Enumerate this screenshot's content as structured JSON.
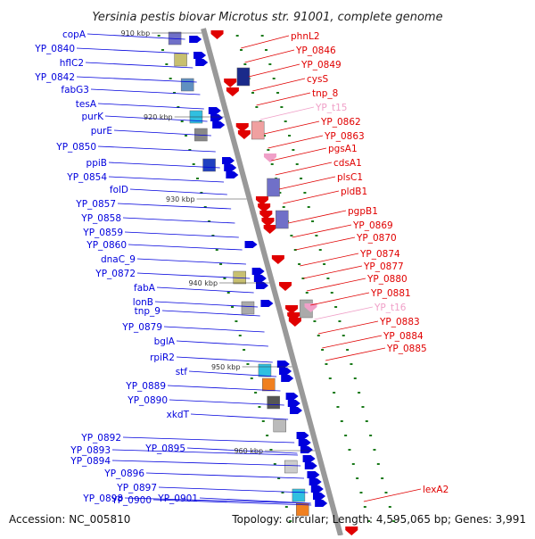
{
  "title": "Yersinia pestis biovar Microtus str. 91001, complete genome",
  "accession": "Accession: NC_005810",
  "summary": "Topology: circular; Length: 4,595,065 bp; Genes: 3,991",
  "colors": {
    "forward": "#0000dd",
    "reverse": "#e00000",
    "pseudo": "#f0a0c8",
    "backbone": "#999999",
    "tick": "#1a7a1a"
  },
  "ticks": [
    {
      "label": "910 kbp"
    },
    {
      "label": "920 kbp"
    },
    {
      "label": "930 kbp"
    },
    {
      "label": "940 kbp"
    },
    {
      "label": "950 kbp"
    },
    {
      "label": "960 kbp"
    }
  ],
  "left_genes": [
    "copA",
    "YP_0840",
    "hflC2",
    "YP_0842",
    "fabG3",
    "tesA",
    "purK",
    "purE",
    "YP_0850",
    "ppiB",
    "YP_0854",
    "folD",
    "YP_0857",
    "YP_0858",
    "YP_0859",
    "YP_0860",
    "dnaC_9",
    "YP_0872",
    "fabA",
    "lonB",
    "tnp_9",
    "YP_0879",
    "bglA",
    "rpiR2",
    "stf",
    "YP_0889",
    "YP_0890",
    "xkdT",
    "YP_0892",
    "YP_0893",
    "YP_0895",
    "YP_0894",
    "YP_0896",
    "YP_0897",
    "YP_0898",
    "YP_0900",
    "YP_0901"
  ],
  "right_genes": [
    {
      "name": "phnL2",
      "type": "reverse"
    },
    {
      "name": "YP_0846",
      "type": "reverse"
    },
    {
      "name": "YP_0849",
      "type": "reverse"
    },
    {
      "name": "cysS",
      "type": "reverse"
    },
    {
      "name": "tnp_8",
      "type": "reverse"
    },
    {
      "name": "YP_t15",
      "type": "pseudo"
    },
    {
      "name": "YP_0862",
      "type": "reverse"
    },
    {
      "name": "YP_0863",
      "type": "reverse"
    },
    {
      "name": "pgsA1",
      "type": "reverse"
    },
    {
      "name": "cdsA1",
      "type": "reverse"
    },
    {
      "name": "plsC1",
      "type": "reverse"
    },
    {
      "name": "pldB1",
      "type": "reverse"
    },
    {
      "name": "pgpB1",
      "type": "reverse"
    },
    {
      "name": "YP_0869",
      "type": "reverse"
    },
    {
      "name": "YP_0870",
      "type": "reverse"
    },
    {
      "name": "YP_0874",
      "type": "reverse"
    },
    {
      "name": "YP_0877",
      "type": "reverse"
    },
    {
      "name": "YP_0880",
      "type": "reverse"
    },
    {
      "name": "YP_0881",
      "type": "reverse"
    },
    {
      "name": "YP_t16",
      "type": "pseudo"
    },
    {
      "name": "YP_0883",
      "type": "reverse"
    },
    {
      "name": "YP_0884",
      "type": "reverse"
    },
    {
      "name": "YP_0885",
      "type": "reverse"
    },
    {
      "name": "lexA2",
      "type": "reverse"
    }
  ]
}
